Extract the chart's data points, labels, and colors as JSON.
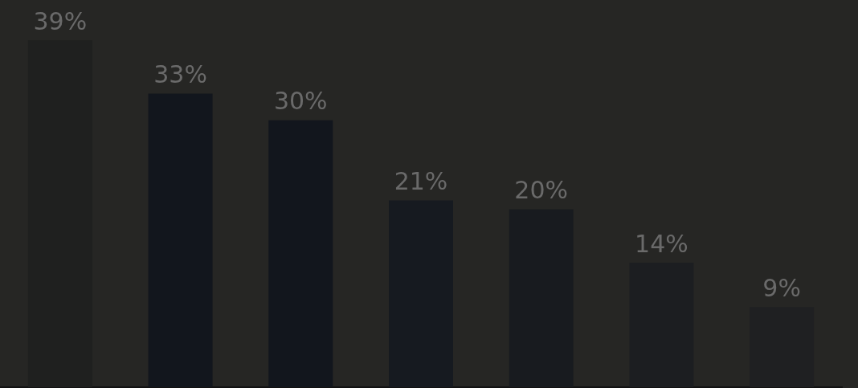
{
  "chart_data": {
    "type": "bar",
    "categories": [
      null,
      null,
      null,
      null,
      null,
      null,
      null
    ],
    "values": [
      39,
      33,
      30,
      21,
      20,
      14,
      9
    ],
    "colors": [
      "#1f201f",
      "#12161d",
      "#12161d",
      "#161a20",
      "#181b1f",
      "#1c1e21",
      "#1f2022"
    ],
    "value_labels": [
      "39%",
      "33%",
      "30%",
      "21%",
      "20%",
      "14%",
      "9%"
    ],
    "legend": false
  }
}
